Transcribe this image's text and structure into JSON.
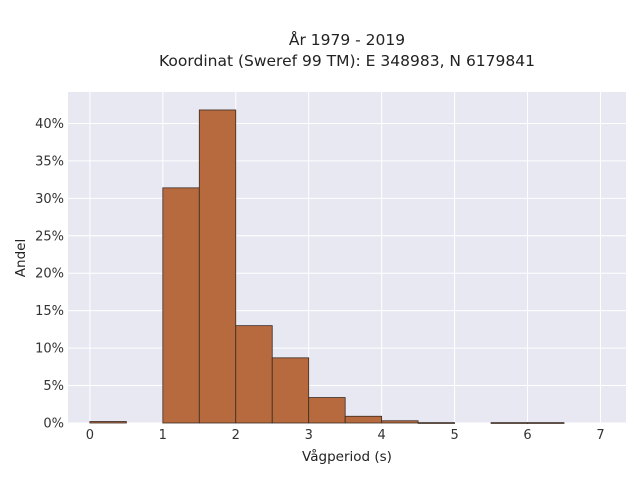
{
  "chart_data": {
    "type": "bar",
    "title": "År 1979 - 2019",
    "subtitle": "Koordinat (Sweref 99 TM): E 348983, N 6179841",
    "xlabel": "Vågperiod (s)",
    "ylabel": "Andel",
    "xlim": [
      -0.3,
      7.35
    ],
    "ylim": [
      0,
      44.2
    ],
    "x_ticks": [
      0,
      1,
      2,
      3,
      4,
      5,
      6,
      7
    ],
    "x_tick_labels": [
      "0",
      "1",
      "2",
      "3",
      "4",
      "5",
      "6",
      "7"
    ],
    "y_ticks": [
      0,
      5,
      10,
      15,
      20,
      25,
      30,
      35,
      40
    ],
    "y_tick_labels": [
      "0%",
      "5%",
      "10%",
      "15%",
      "20%",
      "25%",
      "30%",
      "35%",
      "40%"
    ],
    "bin_width": 0.5,
    "bins": [
      {
        "start": 0.0,
        "end": 0.5,
        "value": 0.2
      },
      {
        "start": 0.5,
        "end": 1.0,
        "value": 0.0
      },
      {
        "start": 1.0,
        "end": 1.5,
        "value": 31.4
      },
      {
        "start": 1.5,
        "end": 2.0,
        "value": 41.8
      },
      {
        "start": 2.0,
        "end": 2.5,
        "value": 13.0
      },
      {
        "start": 2.5,
        "end": 3.0,
        "value": 8.7
      },
      {
        "start": 3.0,
        "end": 3.5,
        "value": 3.4
      },
      {
        "start": 3.5,
        "end": 4.0,
        "value": 0.9
      },
      {
        "start": 4.0,
        "end": 4.5,
        "value": 0.3
      },
      {
        "start": 4.5,
        "end": 5.0,
        "value": 0.05
      },
      {
        "start": 5.0,
        "end": 5.5,
        "value": 0.0
      },
      {
        "start": 5.5,
        "end": 6.0,
        "value": 0.05
      },
      {
        "start": 6.0,
        "end": 6.5,
        "value": 0.05
      }
    ],
    "grid": true,
    "colors": {
      "bar_fill": "#b86a3f",
      "bar_stroke": "#3a2a20",
      "plot_background": "#e8e8f2",
      "grid": "#ffffff"
    }
  }
}
